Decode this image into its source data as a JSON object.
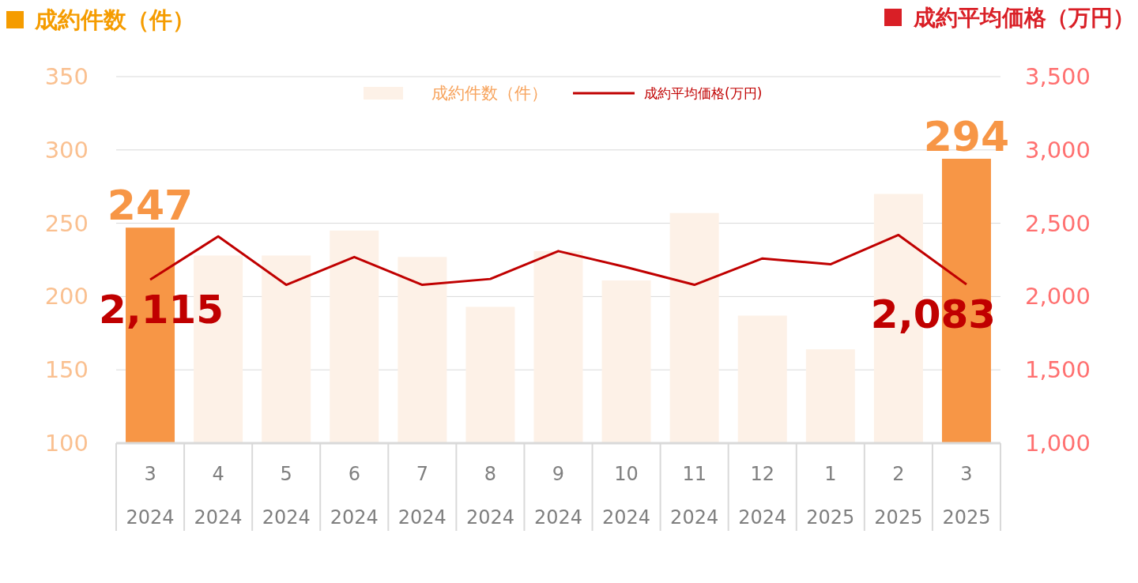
{
  "chart_data": {
    "type": "bar",
    "ylabel": "成約件数（件）",
    "y2label": "成約平均価格（万円）",
    "categories": [
      "3\n2024",
      "4\n2024",
      "5\n2024",
      "6\n2024",
      "7\n2024",
      "8\n2024",
      "9\n2024",
      "10\n2024",
      "11\n2024",
      "12\n2024",
      "1\n2025",
      "2\n2025",
      "3\n2025"
    ],
    "series": [
      {
        "name": "成約件数（件）",
        "color": "#fdf1e7",
        "colors": [
          "#f79646",
          "#fdf1e7",
          "#fdf1e7",
          "#fdf1e7",
          "#fdf1e7",
          "#fdf1e7",
          "#fdf1e7",
          "#fdf1e7",
          "#fdf1e7",
          "#fdf1e7",
          "#fdf1e7",
          "#fdf1e7",
          "#f79646"
        ],
        "values": [
          247,
          228,
          228,
          245,
          227,
          193,
          231,
          211,
          257,
          187,
          164,
          270,
          294
        ],
        "value_labels": [
          "247",
          null,
          null,
          null,
          null,
          null,
          null,
          null,
          null,
          null,
          null,
          null,
          "294"
        ]
      },
      {
        "name": "成約平均価格(万円)",
        "type": "line",
        "axis": "y2",
        "color": "#c00000",
        "values": [
          2115,
          2410,
          2080,
          2270,
          2080,
          2120,
          2310,
          2200,
          2080,
          2260,
          2220,
          2420,
          2083
        ],
        "value_labels": [
          "2,115",
          null,
          null,
          null,
          null,
          null,
          null,
          null,
          null,
          null,
          null,
          null,
          "2,083"
        ]
      }
    ],
    "ylim": [
      100,
      350
    ],
    "yticks": [
      100,
      150,
      200,
      250,
      300,
      350
    ],
    "y2lim": [
      1000,
      3500
    ],
    "y2ticks": [
      {
        "value": 1000,
        "label": "1,000"
      },
      {
        "value": 1500,
        "label": "1,500"
      },
      {
        "value": 2000,
        "label": "2,000"
      },
      {
        "value": 2500,
        "label": "2,500"
      },
      {
        "value": 3000,
        "label": "3,000"
      },
      {
        "value": 3500,
        "label": "3,500"
      }
    ],
    "grid": "y",
    "legend": "top",
    "marker": "none",
    "line_style": "solid"
  }
}
